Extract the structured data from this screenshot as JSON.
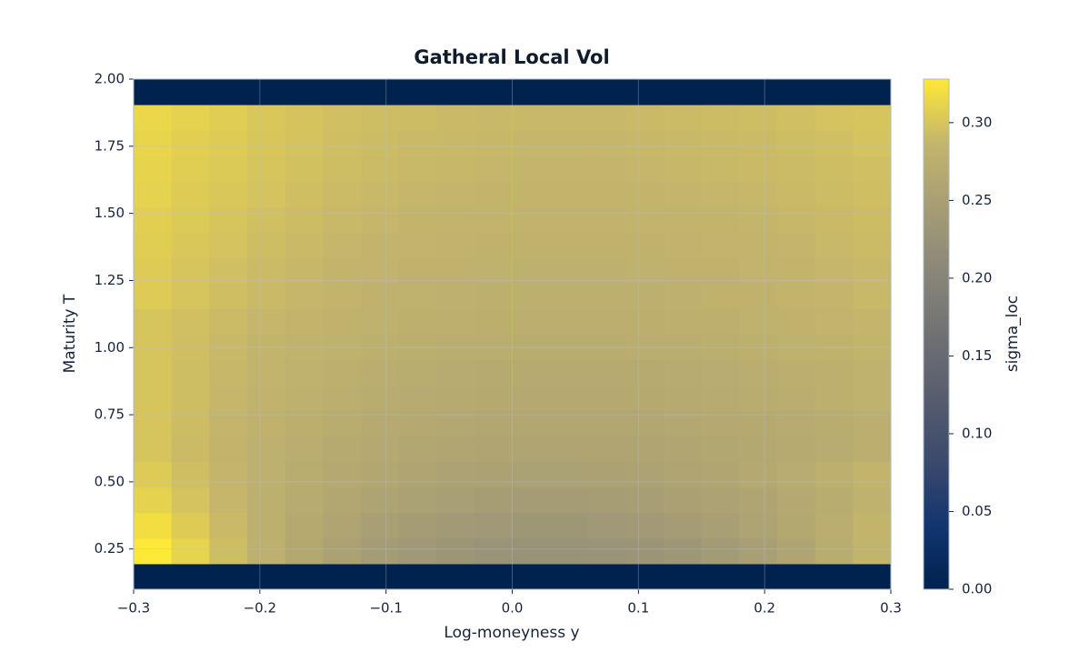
{
  "chart_data": {
    "type": "heatmap",
    "title": "Gatheral Local Vol",
    "x_label": "Log-moneyness y",
    "y_label": "Maturity T",
    "colorbar_label": "sigma_loc",
    "colormap": "cividis",
    "grid": true,
    "xlim": [
      -0.3,
      0.3
    ],
    "xticks": [
      {
        "value": -0.3,
        "label": "−0.3"
      },
      {
        "value": -0.2,
        "label": "−0.2"
      },
      {
        "value": -0.1,
        "label": "−0.1"
      },
      {
        "value": 0,
        "label": "0.0"
      },
      0.1,
      0.2,
      0.3
    ],
    "ylim": [
      0.1,
      2.0
    ],
    "yticks": [
      {
        "value": 0.25,
        "label": "0.25"
      },
      {
        "value": 0.5,
        "label": "0.50"
      },
      {
        "value": 0.75,
        "label": "0.75"
      },
      {
        "value": 1.0,
        "label": "1.00"
      },
      {
        "value": 1.25,
        "label": "1.25"
      },
      {
        "value": 1.5,
        "label": "1.50"
      },
      {
        "value": 1.75,
        "label": "1.75"
      },
      {
        "value": 2.0,
        "label": "2.00"
      }
    ],
    "clim": [
      0,
      0.328
    ],
    "cticks": [
      {
        "value": 0,
        "label": "0.00"
      },
      {
        "value": 0.05,
        "label": "0.05"
      },
      {
        "value": 0.1,
        "label": "0.10"
      },
      {
        "value": 0.15,
        "label": "0.15"
      },
      {
        "value": 0.2,
        "label": "0.20"
      },
      {
        "value": 0.25,
        "label": "0.25"
      },
      {
        "value": 0.3,
        "label": "0.30"
      }
    ],
    "x_edges": [
      -0.3,
      -0.27,
      -0.24,
      -0.21,
      -0.18,
      -0.15,
      -0.12,
      -0.09,
      -0.06,
      -0.03,
      0,
      0.03,
      0.06,
      0.09,
      0.12,
      0.15,
      0.18,
      0.21,
      0.24,
      0.27,
      0.3
    ],
    "y_edges": [
      0.1,
      0.195,
      0.29,
      0.385,
      0.48,
      0.575,
      0.67,
      0.765,
      0.86,
      0.955,
      1.05,
      1.145,
      1.24,
      1.335,
      1.43,
      1.525,
      1.62,
      1.715,
      1.81,
      1.905,
      2.0
    ],
    "z": [
      [
        0,
        0,
        0,
        0,
        0,
        0,
        0,
        0,
        0,
        0,
        0,
        0,
        0,
        0,
        0,
        0,
        0,
        0,
        0,
        0
      ],
      [
        0.33,
        0.311,
        0.294,
        0.279,
        0.265,
        0.253,
        0.244,
        0.237,
        0.231,
        0.227,
        0.225,
        0.225,
        0.227,
        0.23,
        0.235,
        0.242,
        0.25,
        0.26,
        0.272,
        0.285
      ],
      [
        0.32,
        0.305,
        0.291,
        0.278,
        0.267,
        0.258,
        0.25,
        0.244,
        0.24,
        0.237,
        0.235,
        0.235,
        0.237,
        0.24,
        0.244,
        0.249,
        0.256,
        0.265,
        0.274,
        0.285
      ],
      [
        0.31,
        0.298,
        0.288,
        0.278,
        0.27,
        0.263,
        0.257,
        0.252,
        0.249,
        0.246,
        0.245,
        0.245,
        0.246,
        0.248,
        0.251,
        0.255,
        0.26,
        0.266,
        0.272,
        0.28
      ],
      [
        0.305,
        0.295,
        0.287,
        0.279,
        0.272,
        0.266,
        0.262,
        0.258,
        0.255,
        0.253,
        0.252,
        0.252,
        0.253,
        0.255,
        0.258,
        0.261,
        0.266,
        0.271,
        0.278,
        0.285
      ],
      [
        0.3,
        0.292,
        0.286,
        0.279,
        0.274,
        0.269,
        0.266,
        0.263,
        0.261,
        0.259,
        0.258,
        0.258,
        0.259,
        0.26,
        0.261,
        0.263,
        0.265,
        0.268,
        0.271,
        0.275
      ],
      [
        0.3,
        0.293,
        0.287,
        0.281,
        0.276,
        0.272,
        0.269,
        0.266,
        0.264,
        0.263,
        0.262,
        0.262,
        0.262,
        0.263,
        0.264,
        0.266,
        0.267,
        0.27,
        0.272,
        0.275
      ],
      [
        0.3,
        0.294,
        0.288,
        0.283,
        0.279,
        0.275,
        0.272,
        0.27,
        0.268,
        0.267,
        0.266,
        0.266,
        0.266,
        0.267,
        0.268,
        0.27,
        0.272,
        0.274,
        0.277,
        0.28
      ],
      [
        0.3,
        0.294,
        0.289,
        0.284,
        0.28,
        0.277,
        0.274,
        0.272,
        0.27,
        0.269,
        0.268,
        0.268,
        0.268,
        0.269,
        0.27,
        0.271,
        0.273,
        0.275,
        0.277,
        0.28
      ],
      [
        0.3,
        0.295,
        0.29,
        0.286,
        0.283,
        0.28,
        0.277,
        0.275,
        0.274,
        0.273,
        0.272,
        0.272,
        0.272,
        0.273,
        0.274,
        0.276,
        0.277,
        0.28,
        0.282,
        0.285
      ],
      [
        0.3,
        0.296,
        0.292,
        0.288,
        0.285,
        0.282,
        0.28,
        0.278,
        0.277,
        0.276,
        0.275,
        0.275,
        0.275,
        0.276,
        0.277,
        0.278,
        0.28,
        0.282,
        0.284,
        0.287
      ],
      [
        0.305,
        0.3,
        0.295,
        0.291,
        0.288,
        0.285,
        0.282,
        0.28,
        0.279,
        0.278,
        0.277,
        0.277,
        0.277,
        0.278,
        0.279,
        0.281,
        0.282,
        0.285,
        0.287,
        0.29
      ],
      [
        0.305,
        0.3,
        0.296,
        0.292,
        0.289,
        0.286,
        0.284,
        0.282,
        0.281,
        0.28,
        0.279,
        0.279,
        0.279,
        0.28,
        0.281,
        0.282,
        0.284,
        0.285,
        0.288,
        0.29
      ],
      [
        0.307,
        0.302,
        0.298,
        0.294,
        0.291,
        0.288,
        0.286,
        0.284,
        0.283,
        0.282,
        0.281,
        0.281,
        0.281,
        0.282,
        0.283,
        0.284,
        0.286,
        0.287,
        0.29,
        0.292
      ],
      [
        0.308,
        0.303,
        0.3,
        0.296,
        0.293,
        0.29,
        0.288,
        0.286,
        0.285,
        0.284,
        0.283,
        0.283,
        0.283,
        0.284,
        0.285,
        0.286,
        0.287,
        0.289,
        0.291,
        0.293
      ],
      [
        0.31,
        0.305,
        0.302,
        0.298,
        0.295,
        0.292,
        0.29,
        0.288,
        0.287,
        0.286,
        0.285,
        0.285,
        0.285,
        0.286,
        0.287,
        0.288,
        0.289,
        0.291,
        0.293,
        0.295
      ],
      [
        0.312,
        0.307,
        0.304,
        0.3,
        0.297,
        0.294,
        0.292,
        0.29,
        0.289,
        0.288,
        0.287,
        0.287,
        0.287,
        0.288,
        0.289,
        0.29,
        0.291,
        0.292,
        0.294,
        0.296
      ],
      [
        0.313,
        0.308,
        0.305,
        0.301,
        0.298,
        0.295,
        0.293,
        0.291,
        0.29,
        0.289,
        0.288,
        0.288,
        0.288,
        0.289,
        0.29,
        0.291,
        0.292,
        0.294,
        0.296,
        0.298
      ],
      [
        0.314,
        0.31,
        0.306,
        0.302,
        0.299,
        0.296,
        0.294,
        0.293,
        0.291,
        0.29,
        0.29,
        0.29,
        0.29,
        0.291,
        0.292,
        0.293,
        0.294,
        0.296,
        0.298,
        0.3
      ],
      [
        0,
        0,
        0,
        0,
        0,
        0,
        0,
        0,
        0,
        0,
        0,
        0,
        0,
        0,
        0,
        0,
        0,
        0,
        0,
        0
      ]
    ]
  }
}
